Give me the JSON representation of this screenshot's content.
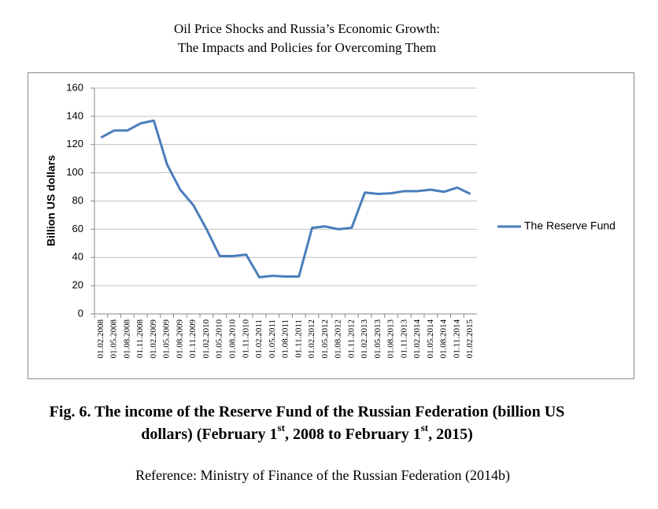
{
  "header": {
    "lines": [
      "Oil Price Shocks and Russia’s Economic Growth:",
      "The Impacts and Policies for Overcoming Them"
    ]
  },
  "chart_data": {
    "type": "line",
    "y_label": "Billion US dollars",
    "categories": [
      "01.02.2008",
      "01.05.2008",
      "01.08.2008",
      "01.11.2008",
      "01.02.2009",
      "01.05.2009",
      "01.08.2009",
      "01.11.2009",
      "01.02.2010",
      "01.05.2010",
      "01.08.2010",
      "01.11.2010",
      "01.02.2011",
      "01.05.2011",
      "01.08.2011",
      "01.11.2011",
      "01.02.2012",
      "01.05.2012",
      "01.08.2012",
      "01.11.2012",
      "01.02.2013",
      "01.05.2013",
      "01.08.2013",
      "01.11.2013",
      "01.02.2014",
      "01.05.2014",
      "01.08.2014",
      "01.11.2014",
      "01.02.2015"
    ],
    "series": [
      {
        "name": "The Reserve Fund",
        "color": "#4a7ebb",
        "values": [
          125,
          130,
          130,
          135,
          137,
          106,
          88,
          77,
          60,
          41,
          41,
          42,
          26,
          27,
          26.5,
          26.5,
          61,
          62,
          60,
          61,
          86,
          85,
          85.5,
          87,
          87,
          88,
          86.5,
          89.5,
          85
        ]
      }
    ],
    "ylim": [
      0,
      160
    ],
    "yticks": [
      0,
      20,
      40,
      60,
      80,
      100,
      120,
      140,
      160
    ],
    "grid": true,
    "legend": "right"
  },
  "caption": {
    "line1": "Fig. 6. The income of the Reserve Fund of the Russian Federation (billion US",
    "line2": [
      "dollars) (February 1",
      "st",
      ", 2008 to February 1",
      "st",
      ", 2015)"
    ]
  },
  "reference": "Reference: Ministry of Finance of the Russian Federation (2014b)"
}
